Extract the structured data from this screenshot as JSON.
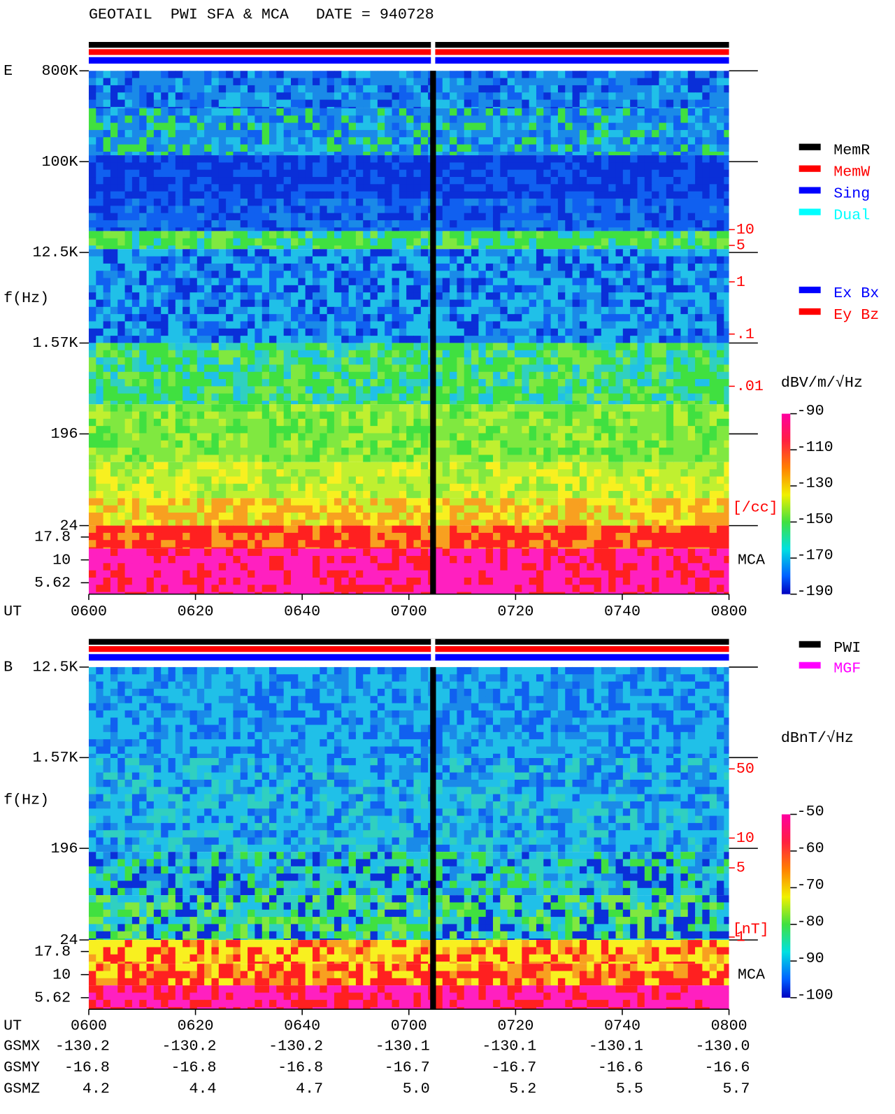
{
  "header": {
    "title": "GEOTAIL  PWI SFA & MCA   DATE = 940728"
  },
  "chart_data": [
    {
      "type": "spectrogram",
      "panel_label": "E",
      "y_label": "f(Hz)",
      "x_label": "UT",
      "ylim": [
        24,
        800000
      ],
      "log_scale": true,
      "yticks": [
        {
          "value": 800000,
          "label": "800K"
        },
        {
          "value": 100000,
          "label": "100K"
        },
        {
          "value": 12500,
          "label": "12.5K"
        },
        {
          "value": 1570,
          "label": "1.57K"
        },
        196,
        24
      ],
      "mca_ticks": [
        17.8,
        10,
        5.62
      ],
      "mca_label": "MCA",
      "xticks": [
        "0600",
        "0620",
        "0640",
        "0700",
        "0720",
        "0740",
        "0800"
      ],
      "colorbar_label": "dBV/m/√Hz",
      "clim": [
        -190,
        -90
      ],
      "cticks": [
        -90,
        -110,
        -130,
        -150,
        -170,
        -190
      ],
      "density_label": "[/cc]",
      "density_lim": [
        0.01,
        10
      ],
      "density_color": "#ff0000",
      "density_ticks": [
        10,
        5,
        1,
        {
          "value": 0.1,
          "label": ".1"
        },
        {
          "value": 0.01,
          "label": ".01"
        }
      ],
      "legend": [
        [
          {
            "name": "MemR",
            "color": "#000000"
          },
          {
            "name": "MemW",
            "color": "#ff0000"
          },
          {
            "name": "Sing",
            "color": "#0000ff"
          },
          {
            "name": "Dual",
            "color": "#00ffff"
          }
        ],
        [
          {
            "name": "Ex Bx",
            "color": "#0000ff"
          },
          {
            "name": "Ey Bz",
            "color": "#ff0000"
          }
        ]
      ]
    },
    {
      "type": "spectrogram",
      "panel_label": "B",
      "y_label": "f(Hz)",
      "x_label": "UT",
      "ylim": [
        24,
        12500
      ],
      "log_scale": true,
      "yticks": [
        {
          "value": 12500,
          "label": "12.5K"
        },
        {
          "value": 1570,
          "label": "1.57K"
        },
        196,
        24
      ],
      "mca_ticks": [
        17.8,
        10,
        5.62
      ],
      "mca_label": "MCA",
      "xticks": [
        "0600",
        "0620",
        "0640",
        "0700",
        "0720",
        "0740",
        "0800"
      ],
      "colorbar_label": "dBnT/√Hz",
      "clim": [
        -100,
        -50
      ],
      "cticks": [
        -50,
        -60,
        -70,
        -80,
        -90,
        -100
      ],
      "density_label": "[nT]",
      "density_lim": [
        1,
        50
      ],
      "density_color": "#ff0000",
      "density_ticks": [
        50,
        10,
        5,
        1
      ],
      "legend": [
        [
          {
            "name": "PWI",
            "color": "#000000"
          },
          {
            "name": "MGF",
            "color": "#ff00ff"
          }
        ]
      ]
    }
  ],
  "orbit": [
    {
      "label": "GSMX",
      "values": [
        "-130.2",
        "-130.2",
        "-130.2",
        "-130.1",
        "-130.1",
        "-130.1",
        "-130.0"
      ]
    },
    {
      "label": "GSMY",
      "values": [
        "-16.8",
        "-16.8",
        "-16.8",
        "-16.7",
        "-16.7",
        "-16.6",
        "-16.6"
      ]
    },
    {
      "label": "GSMZ",
      "values": [
        "4.2",
        "4.4",
        "4.7",
        "5.0",
        "5.2",
        "5.5",
        "5.7"
      ]
    }
  ]
}
